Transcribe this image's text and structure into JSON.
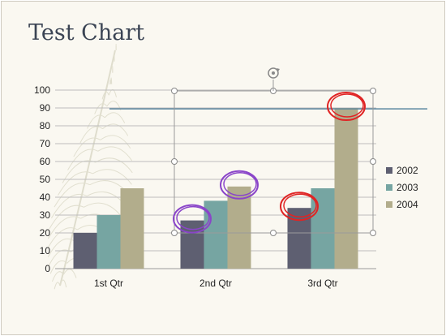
{
  "colors": {
    "background": "#faf8f1",
    "gridline": "#bdbdbd",
    "reference_line": "#5b87a1",
    "annotation_red": "#e02424",
    "annotation_purple": "#8a45c9",
    "selection_box": "#9a9a9a"
  },
  "chart_data": {
    "type": "bar",
    "title": "Test Chart",
    "xlabel": "",
    "ylabel": "",
    "categories": [
      "1st Qtr",
      "2nd Qtr",
      "3rd Qtr"
    ],
    "series": [
      {
        "name": "2002",
        "color": "#5e5f71",
        "values": [
          20,
          27,
          34
        ]
      },
      {
        "name": "2003",
        "color": "#76a5a2",
        "values": [
          30,
          38,
          45
        ]
      },
      {
        "name": "2004",
        "color": "#b2ad8c",
        "values": [
          45,
          46,
          90
        ]
      }
    ],
    "ylim": [
      0,
      100
    ],
    "yticks": [
      0,
      10,
      20,
      30,
      40,
      50,
      60,
      70,
      80,
      90,
      100
    ],
    "grid": true,
    "legend": "right",
    "reference_line_value": 89.5,
    "annotations": [
      {
        "shape": "circle",
        "color": "purple",
        "category": "2nd Qtr",
        "series": "2002"
      },
      {
        "shape": "circle",
        "color": "purple",
        "category": "2nd Qtr",
        "series": "2004"
      },
      {
        "shape": "circle",
        "color": "red",
        "category": "3rd Qtr",
        "series": "2002"
      },
      {
        "shape": "circle",
        "color": "red",
        "category": "3rd Qtr",
        "series": "2004"
      }
    ]
  }
}
